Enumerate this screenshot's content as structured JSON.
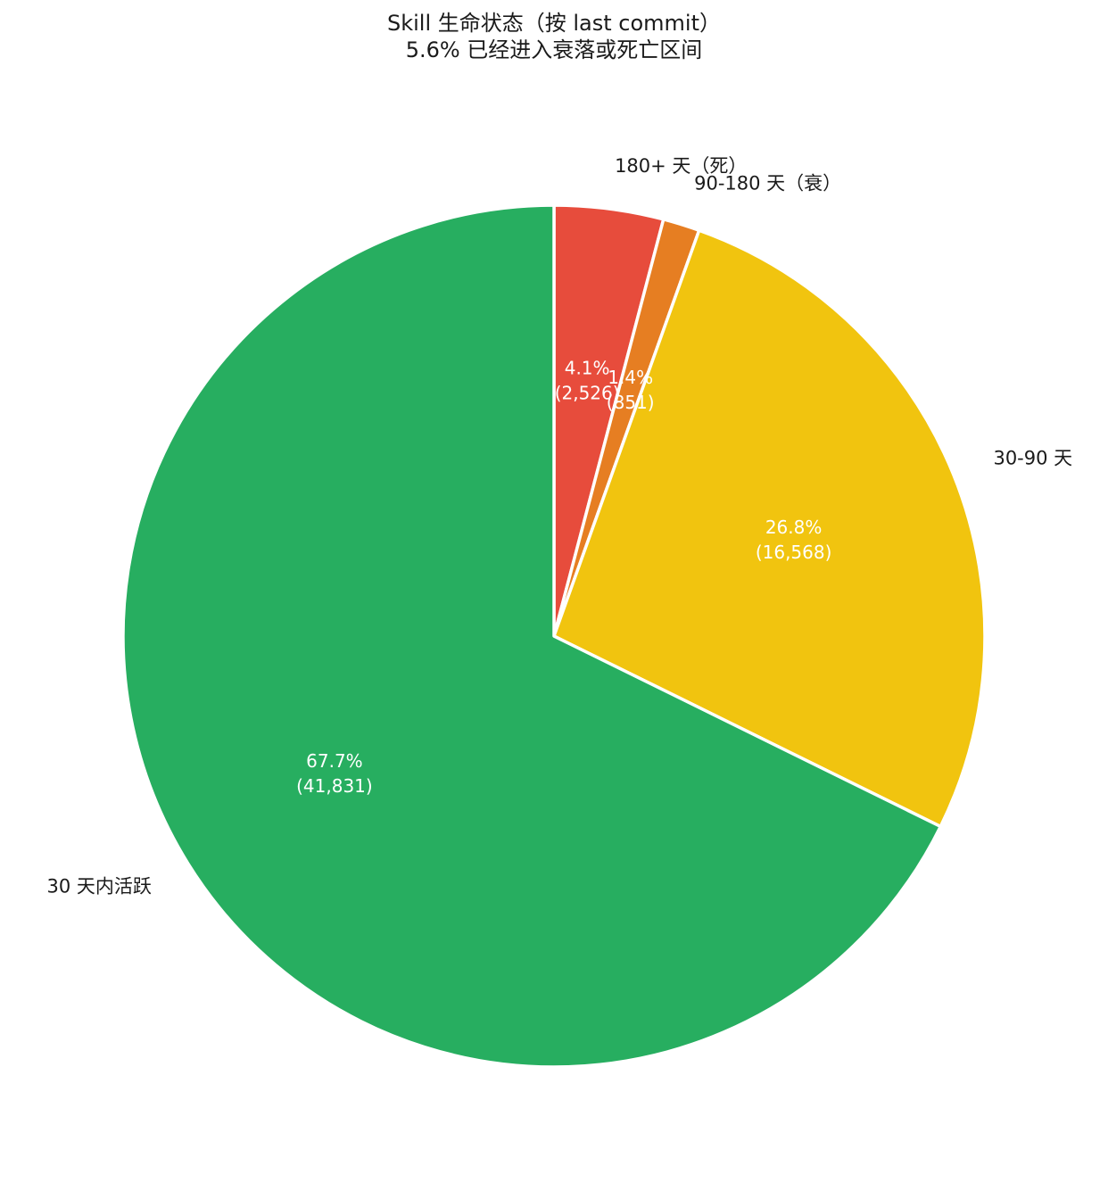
{
  "chart_data": {
    "type": "pie",
    "title": "Skill 生命状态（按 last commit）",
    "subtitle": "5.6% 已经进入衰落或死亡区间",
    "start_angle_deg": 90,
    "direction": "clockwise",
    "slices": [
      {
        "label": "180+ 天（死）",
        "value": 2526,
        "percent_label": "4.1%",
        "count_label": "(2,526)",
        "color": "#e74c3c"
      },
      {
        "label": "90-180 天（衰）",
        "value": 851,
        "percent_label": "1.4%",
        "count_label": "(851)",
        "color": "#e67e22"
      },
      {
        "label": "30-90 天",
        "value": 16568,
        "percent_label": "26.8%",
        "count_label": "(16,568)",
        "color": "#f1c40f"
      },
      {
        "label": "30 天内活跃",
        "value": 41831,
        "percent_label": "67.7%",
        "count_label": "(41,831)",
        "color": "#27ae60"
      }
    ]
  }
}
